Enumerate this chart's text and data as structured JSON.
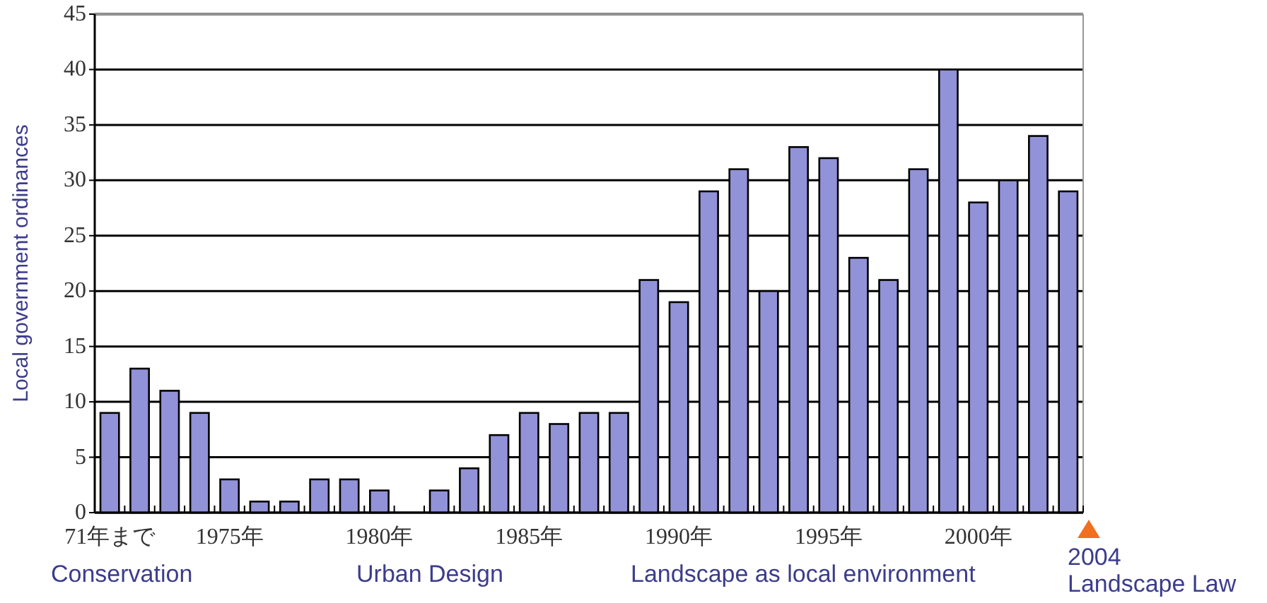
{
  "chart_data": {
    "type": "bar",
    "ylabel": "Local government ordinances",
    "categories": [
      "71年まで",
      null,
      null,
      null,
      "1975年",
      null,
      null,
      null,
      null,
      "1980年",
      null,
      null,
      null,
      null,
      "1985年",
      null,
      null,
      null,
      null,
      "1990年",
      null,
      null,
      null,
      null,
      "1995年",
      null,
      null,
      null,
      null,
      "2000年",
      null,
      null,
      null
    ],
    "values": [
      9,
      13,
      11,
      9,
      3,
      1,
      1,
      3,
      3,
      2,
      0,
      2,
      4,
      7,
      9,
      8,
      9,
      9,
      21,
      19,
      29,
      31,
      20,
      33,
      32,
      23,
      21,
      31,
      40,
      28,
      30,
      34,
      29
    ],
    "color": "#9292d8",
    "ylim": [
      0,
      45
    ],
    "yticks": [
      0,
      5,
      10,
      15,
      20,
      25,
      30,
      35,
      40,
      45
    ],
    "grid": "y",
    "annotations": [
      "Conservation",
      "Urban Design",
      "Landscape as local environment",
      "2004\nLandscape Law"
    ]
  }
}
